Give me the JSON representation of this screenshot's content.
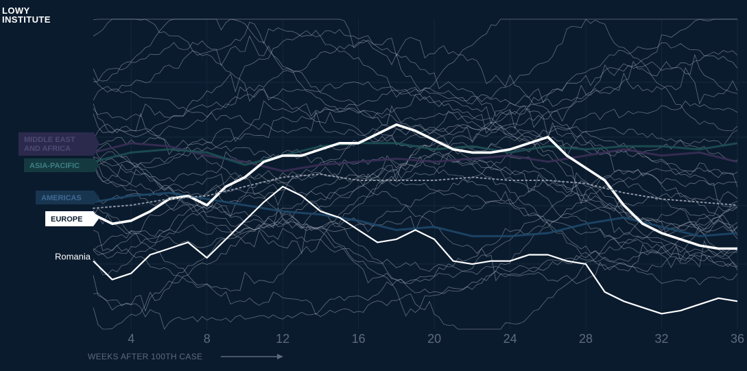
{
  "brand": {
    "line1": "LOWY",
    "line2": "INSTITUTE"
  },
  "chart_data": {
    "type": "line",
    "xlabel": "WEEKS AFTER 100TH CASE",
    "ylabel": "",
    "xlim": [
      2,
      36
    ],
    "ylim": [
      0,
      100
    ],
    "x_ticks": [
      4,
      8,
      12,
      16,
      20,
      24,
      28,
      32,
      36
    ],
    "grid": true,
    "region_labels": [
      {
        "name": "MIDDLE EAST AND AFRICA",
        "lines": [
          "MIDDLE EAST",
          "AND AFRICA"
        ],
        "color": "#2c2a4c",
        "text_color": "#4b4b74"
      },
      {
        "name": "ASIA-PACIFIC",
        "lines": [
          "ASIA-PACIFIC"
        ],
        "color": "#143a40",
        "text_color": "#3e7f84"
      },
      {
        "name": "AMERICAS",
        "lines": [
          "AMERICAS"
        ],
        "color": "#183550",
        "text_color": "#3f6a93"
      },
      {
        "name": "EUROPE",
        "lines": [
          "EUROPE"
        ],
        "color": "#ffffff",
        "text_color": "#0b1b2e"
      }
    ],
    "series": [
      {
        "name": "EUROPE",
        "role": "highlight",
        "x": [
          2,
          3,
          4,
          5,
          6,
          7,
          8,
          9,
          10,
          11,
          12,
          13,
          14,
          15,
          16,
          17,
          18,
          19,
          20,
          21,
          22,
          23,
          24,
          25,
          26,
          27,
          28,
          29,
          30,
          31,
          32,
          33,
          34,
          35,
          36
        ],
        "y": [
          63,
          66,
          65,
          62,
          58,
          57,
          60,
          54,
          51,
          46,
          44,
          44,
          42,
          40,
          40,
          37,
          34,
          36,
          39,
          42,
          43,
          43,
          42,
          40,
          38,
          44,
          48,
          52,
          60,
          66,
          69,
          71,
          73,
          74,
          74
        ]
      },
      {
        "name": "Romania",
        "role": "highlight",
        "x": [
          2,
          3,
          4,
          5,
          6,
          7,
          8,
          9,
          10,
          11,
          12,
          13,
          14,
          15,
          16,
          17,
          18,
          19,
          20,
          21,
          22,
          23,
          24,
          25,
          26,
          27,
          28,
          29,
          30,
          31,
          32,
          33,
          34,
          35,
          36
        ],
        "y": [
          78,
          84,
          82,
          76,
          74,
          72,
          77,
          71,
          65,
          59,
          54,
          57,
          62,
          64,
          68,
          72,
          71,
          68,
          71,
          78,
          79,
          78,
          78,
          76,
          76,
          78,
          79,
          88,
          91,
          93,
          95,
          94,
          92,
          90,
          91
        ]
      },
      {
        "name": "",
        "role": "median",
        "x": [
          2,
          4,
          6,
          8,
          10,
          12,
          14,
          16,
          18,
          20,
          22,
          24,
          26,
          28,
          30,
          32,
          34,
          36
        ],
        "y": [
          61,
          60,
          58,
          57,
          54,
          51,
          50,
          52,
          52,
          52,
          51,
          52,
          52,
          53,
          56,
          58,
          59,
          60
        ]
      },
      {
        "name": "",
        "role": "region",
        "color": "#3c2f57",
        "x": [
          2,
          4,
          6,
          8,
          10,
          12,
          14,
          16,
          18,
          20,
          22,
          24,
          26,
          28,
          30,
          32,
          34,
          36
        ],
        "y": [
          43,
          40,
          41,
          44,
          46,
          49,
          47,
          46,
          45,
          46,
          45,
          44,
          46,
          44,
          42,
          44,
          43,
          46
        ]
      },
      {
        "name": "",
        "role": "region",
        "color": "#1f5256",
        "x": [
          2,
          4,
          6,
          8,
          10,
          12,
          14,
          16,
          18,
          20,
          22,
          24,
          26,
          28,
          30,
          32,
          34,
          36
        ],
        "y": [
          46,
          43,
          42,
          43,
          47,
          44,
          41,
          40,
          40,
          42,
          41,
          43,
          41,
          42,
          41,
          41,
          42,
          40
        ]
      },
      {
        "name": "",
        "role": "region",
        "color": "#1f4a6c",
        "x": [
          2,
          4,
          6,
          8,
          10,
          12,
          14,
          16,
          18,
          20,
          22,
          24,
          26,
          28,
          30,
          32,
          34,
          36
        ],
        "y": [
          59,
          57,
          56,
          58,
          60,
          62,
          63,
          65,
          68,
          67,
          70,
          70,
          69,
          66,
          64,
          67,
          70,
          69
        ]
      }
    ]
  }
}
